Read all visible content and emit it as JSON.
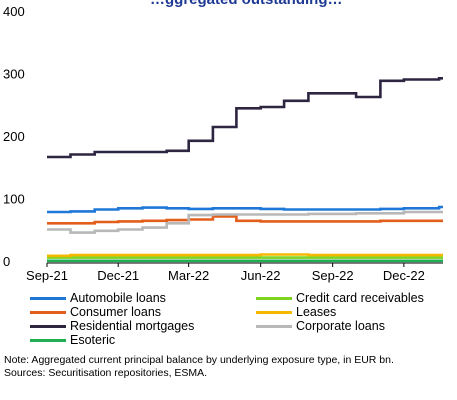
{
  "chart_data": {
    "type": "line",
    "title_fragment": "…ggregated outstanding…",
    "y_ticks": [
      "0",
      "100",
      "200",
      "300",
      "400"
    ],
    "x_ticks": [
      "Sep-21",
      "Dec-21",
      "Mar-22",
      "Jun-22",
      "Sep-22",
      "Dec-22"
    ],
    "ylim": [
      0,
      400
    ],
    "xlim": [
      "2021-09-01",
      "2023-01-20"
    ],
    "grid": false,
    "legend_position": "bottom",
    "x": [
      "2021-09-01",
      "2021-10-01",
      "2021-11-01",
      "2021-12-01",
      "2022-01-01",
      "2022-02-01",
      "2022-03-01",
      "2022-04-01",
      "2022-05-01",
      "2022-06-01",
      "2022-07-01",
      "2022-08-01",
      "2022-09-01",
      "2022-10-01",
      "2022-11-01",
      "2022-12-01",
      "2023-01-15"
    ],
    "series": [
      {
        "name": "Automobile loans",
        "color": "#1f78d8",
        "values": [
          80,
          81,
          84,
          86,
          87,
          86,
          85,
          86,
          86,
          85,
          84,
          84,
          84,
          84,
          85,
          86,
          88
        ]
      },
      {
        "name": "Credit card receivables",
        "color": "#7ed321",
        "values": [
          7,
          7,
          7,
          7,
          7,
          7,
          7,
          7,
          7,
          7,
          7,
          7,
          7,
          7,
          7,
          7,
          7
        ]
      },
      {
        "name": "Consumer loans",
        "color": "#e35d1b",
        "values": [
          62,
          62,
          64,
          65,
          66,
          67,
          68,
          73,
          66,
          65,
          65,
          65,
          65,
          65,
          66,
          66,
          66
        ]
      },
      {
        "name": "Leases",
        "color": "#f5b800",
        "values": [
          10,
          11,
          11,
          11,
          11,
          11,
          11,
          11,
          11,
          12,
          12,
          11,
          11,
          11,
          11,
          11,
          11
        ]
      },
      {
        "name": "Residential mortgages",
        "color": "#2e2541",
        "values": [
          168,
          172,
          176,
          176,
          176,
          178,
          194,
          216,
          246,
          248,
          258,
          270,
          270,
          264,
          290,
          292,
          294
        ]
      },
      {
        "name": "Corporate loans",
        "color": "#b8b8b8",
        "values": [
          52,
          47,
          50,
          52,
          55,
          62,
          75,
          76,
          76,
          76,
          76,
          77,
          77,
          78,
          78,
          80,
          80
        ]
      },
      {
        "name": "Esoteric",
        "color": "#1fae52",
        "values": [
          2,
          2,
          2,
          2,
          2,
          2,
          2,
          2,
          2,
          2,
          2,
          2,
          2,
          2,
          2,
          2,
          2
        ]
      }
    ]
  },
  "notes": {
    "note": "Note: Aggregated current principal balance by underlying exposure type, in EUR bn.",
    "sources": "Sources: Securitisation repositories, ESMA."
  }
}
